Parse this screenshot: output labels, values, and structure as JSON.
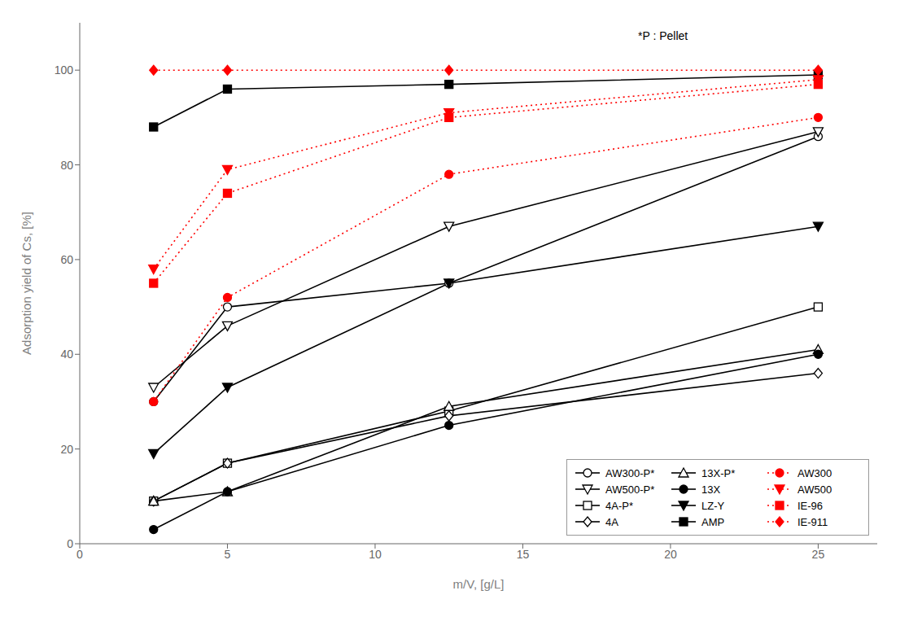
{
  "chart_data": {
    "type": "line",
    "x": [
      2.5,
      5,
      12.5,
      25
    ],
    "series": [
      {
        "name": "AW300-P*",
        "color": "black",
        "marker": "circle_open",
        "line_style": "solid",
        "values": [
          30,
          50,
          55,
          86
        ]
      },
      {
        "name": "AW500-P*",
        "color": "black",
        "marker": "triangle_down_open",
        "line_style": "solid",
        "values": [
          33,
          46,
          67,
          87
        ]
      },
      {
        "name": "4A-P*",
        "color": "black",
        "marker": "square_open",
        "line_style": "solid",
        "values": [
          9,
          17,
          28,
          50
        ]
      },
      {
        "name": "4A",
        "color": "black",
        "marker": "diamond_open",
        "line_style": "solid",
        "values": [
          9,
          17,
          27,
          36
        ]
      },
      {
        "name": "13X-P*",
        "color": "black",
        "marker": "triangle_up_open",
        "line_style": "solid",
        "values": [
          9,
          11,
          29,
          41
        ]
      },
      {
        "name": "13X",
        "color": "black",
        "marker": "circle",
        "line_style": "solid",
        "values": [
          3,
          11,
          25,
          40
        ]
      },
      {
        "name": "LZ-Y",
        "color": "black",
        "marker": "triangle_down",
        "line_style": "solid",
        "values": [
          19,
          33,
          55,
          67
        ]
      },
      {
        "name": "AMP",
        "color": "black",
        "marker": "square",
        "line_style": "solid",
        "values": [
          88,
          96,
          97,
          99
        ]
      },
      {
        "name": "AW300",
        "color": "red",
        "marker": "circle",
        "line_style": "dotted",
        "values": [
          30,
          52,
          78,
          90
        ]
      },
      {
        "name": "AW500",
        "color": "red",
        "marker": "triangle_down",
        "line_style": "dotted",
        "values": [
          58,
          79,
          91,
          98
        ]
      },
      {
        "name": "IE-96",
        "color": "red",
        "marker": "square",
        "line_style": "dotted",
        "values": [
          55,
          74,
          90,
          97
        ]
      },
      {
        "name": "IE-911",
        "color": "red",
        "marker": "diamond",
        "line_style": "dotted",
        "values": [
          100,
          100,
          100,
          100
        ]
      }
    ],
    "xlabel": "m/V,  [g/L]",
    "ylabel": "Adsorption yield of Cs, [%]",
    "xlim": [
      0,
      27
    ],
    "ylim": [
      0,
      110
    ],
    "xticks": [
      0,
      5,
      10,
      15,
      20,
      25
    ],
    "yticks": [
      0,
      20,
      40,
      60,
      80,
      100
    ],
    "annotation": "*P : Pellet",
    "legend": "lower right",
    "grid": false
  }
}
